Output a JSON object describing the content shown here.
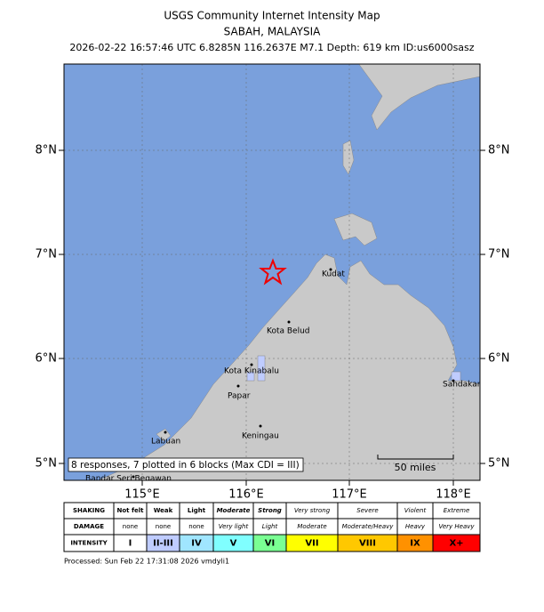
{
  "header": {
    "title": "USGS Community Internet Intensity Map",
    "subtitle": "SABAH, MALAYSIA",
    "event": "2026-02-22 16:57:46 UTC 6.8285N 116.2637E M7.1 Depth: 619 km ID:us6000sasz"
  },
  "map": {
    "lat_labels": [
      "8°N",
      "7°N",
      "6°N",
      "5°N"
    ],
    "lon_labels": [
      "115°E",
      "116°E",
      "117°E",
      "118°E"
    ],
    "places": [
      "Kudat",
      "Kota Belud",
      "Kota Kinabalu",
      "Papar",
      "Keningau",
      "Labuan",
      "Bandar Seri Begawan",
      "Sandakan"
    ],
    "responses_note": "8 responses, 7 plotted in 6 blocks (Max CDI = III)",
    "scale": "50 miles"
  },
  "legend": {
    "rows": [
      {
        "label": "SHAKING",
        "cells": [
          "Not felt",
          "Weak",
          "Light",
          "Moderate",
          "Strong",
          "Very strong",
          "Severe",
          "Violent",
          "Extreme"
        ]
      },
      {
        "label": "DAMAGE",
        "cells": [
          "none",
          "none",
          "none",
          "Very light",
          "Light",
          "Moderate",
          "Moderate/Heavy",
          "Heavy",
          "Very Heavy"
        ]
      },
      {
        "label": "INTENSITY",
        "cells": [
          "I",
          "II-III",
          "IV",
          "V",
          "VI",
          "VII",
          "VIII",
          "IX",
          "X+"
        ]
      }
    ],
    "colors": [
      "#ffffff",
      "#bfccff",
      "#a0e6ff",
      "#80ffff",
      "#7aff93",
      "#ffff00",
      "#ffc800",
      "#ff9100",
      "#ff0000"
    ]
  },
  "footer": "Processed: Sun Feb 22 17:31:08 2026 vmdyli1"
}
